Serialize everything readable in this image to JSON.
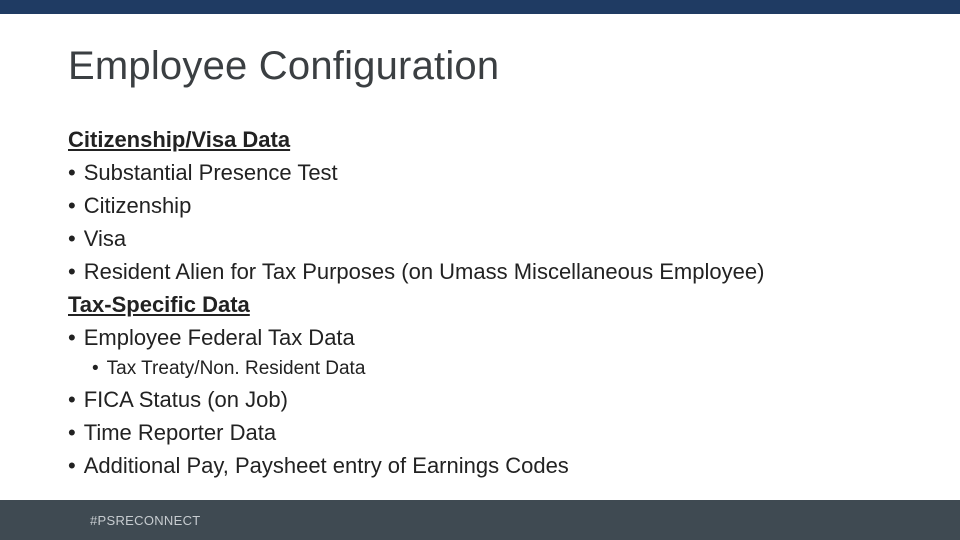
{
  "colors": {
    "top_bar": "#1f3b63",
    "bottom_bar": "#3f4a52",
    "title_text": "#3b3f42",
    "body_text": "#222222",
    "hashtag_text": "#c7ccd0",
    "background": "#ffffff"
  },
  "title": "Employee Configuration",
  "section1_heading": "Citizenship/Visa Data",
  "section1_items": {
    "i0": "Substantial Presence Test",
    "i1": "Citizenship",
    "i2": "Visa",
    "i3": "Resident Alien for Tax Purposes (on Umass Miscellaneous Employee)"
  },
  "section2_heading": "Tax-Specific Data",
  "section2_items": {
    "i0": "Employee Federal Tax Data",
    "i0_sub0": "Tax Treaty/Non. Resident Data",
    "i1": "FICA Status (on Job)",
    "i2": "Time Reporter Data",
    "i3": "Additional Pay, Paysheet entry of Earnings Codes"
  },
  "footer_hashtag": "#PSRECONNECT"
}
